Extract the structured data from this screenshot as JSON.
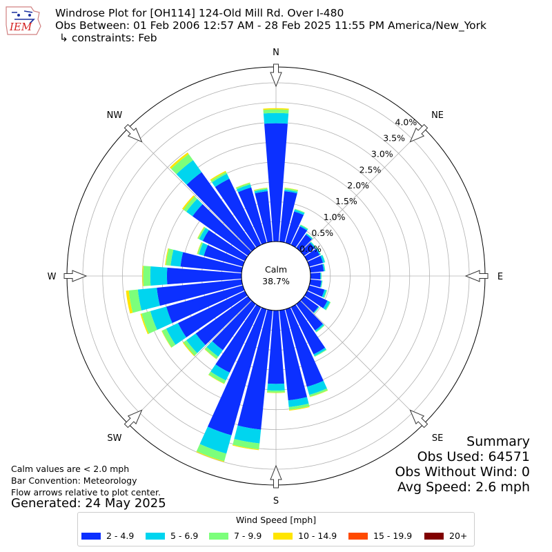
{
  "header": {
    "title_line1": "Windrose Plot for [OH114] 124-Old Mill Rd. Over I-480",
    "title_line2": "Obs Between: 01 Feb 2006 12:57 AM - 28 Feb 2025 11:55 PM America/New_York",
    "title_line3": "↳ constraints: Feb",
    "logo_text": "IEM"
  },
  "notes": {
    "calm_note": "Calm values are < 2.0 mph",
    "bar_convention": "Bar Convention: Meteorology",
    "flow_note": "Flow arrows relative to plot center.",
    "generated": "Generated: 24 May 2025"
  },
  "summary": {
    "title": "Summary",
    "obs_used": "Obs Used: 64571",
    "obs_without_wind": "Obs Without Wind: 0",
    "avg_speed": "Avg Speed: 2.6 mph"
  },
  "chart_data": {
    "type": "windrose",
    "calm_label": "Calm",
    "calm_value": "38.7%",
    "directions": [
      "N",
      "NE",
      "E",
      "SE",
      "S",
      "SW",
      "W",
      "NW"
    ],
    "radial_ticks": [
      "0.0%",
      "0.5%",
      "1.0%",
      "1.5%",
      "2.0%",
      "2.5%",
      "3.0%",
      "3.5%",
      "4.0%"
    ],
    "radial_max": 4.4,
    "sector_width_deg": 10,
    "legend": {
      "title": "Wind Speed [mph]",
      "bins": [
        {
          "label": "2 - 4.9",
          "color": "#0c30ff"
        },
        {
          "label": "5 - 6.9",
          "color": "#00d5ef"
        },
        {
          "label": "7 - 9.9",
          "color": "#7cff7b"
        },
        {
          "label": "10 - 14.9",
          "color": "#ffe500"
        },
        {
          "label": "15 - 19.9",
          "color": "#ff4a00"
        },
        {
          "label": "20+",
          "color": "#800000"
        }
      ]
    },
    "sectors": [
      {
        "dir": 0,
        "values": [
          2.98,
          0.26,
          0.09,
          0.03,
          0,
          0
        ]
      },
      {
        "dir": 10,
        "values": [
          1.28,
          0.04,
          0.04,
          0.01,
          0,
          0
        ]
      },
      {
        "dir": 20,
        "values": [
          0.82,
          0.05,
          0.02,
          0,
          0,
          0
        ]
      },
      {
        "dir": 30,
        "values": [
          0.52,
          0.03,
          0.02,
          0,
          0,
          0
        ]
      },
      {
        "dir": 40,
        "values": [
          0.42,
          0.03,
          0.01,
          0,
          0,
          0
        ]
      },
      {
        "dir": 50,
        "values": [
          0.33,
          0.03,
          0.01,
          0,
          0,
          0
        ]
      },
      {
        "dir": 60,
        "values": [
          0.35,
          0.03,
          0.01,
          0,
          0,
          0
        ]
      },
      {
        "dir": 70,
        "values": [
          0.36,
          0.05,
          0.01,
          0,
          0,
          0
        ]
      },
      {
        "dir": 80,
        "values": [
          0.34,
          0.03,
          0.01,
          0,
          0,
          0
        ]
      },
      {
        "dir": 90,
        "values": [
          0.25,
          0.02,
          0.01,
          0,
          0,
          0
        ]
      },
      {
        "dir": 100,
        "values": [
          0.28,
          0.02,
          0.01,
          0,
          0,
          0
        ]
      },
      {
        "dir": 110,
        "values": [
          0.4,
          0.05,
          0.02,
          0,
          0,
          0
        ]
      },
      {
        "dir": 120,
        "values": [
          0.57,
          0.07,
          0.02,
          0,
          0,
          0
        ]
      },
      {
        "dir": 130,
        "values": [
          0.45,
          0.02,
          0.01,
          0,
          0,
          0
        ]
      },
      {
        "dir": 140,
        "values": [
          0.82,
          0.04,
          0.02,
          0,
          0,
          0
        ]
      },
      {
        "dir": 150,
        "values": [
          1.32,
          0.05,
          0.02,
          0,
          0,
          0
        ]
      },
      {
        "dir": 160,
        "values": [
          2.03,
          0.21,
          0.05,
          0.01,
          0,
          0
        ]
      },
      {
        "dir": 170,
        "values": [
          2.28,
          0.17,
          0.07,
          0.02,
          0,
          0
        ]
      },
      {
        "dir": 180,
        "values": [
          1.85,
          0.17,
          0.05,
          0.01,
          0,
          0
        ]
      },
      {
        "dir": 190,
        "values": [
          3.02,
          0.35,
          0.15,
          0.02,
          0,
          0
        ]
      },
      {
        "dir": 200,
        "values": [
          3.3,
          0.48,
          0.2,
          0.02,
          0,
          0
        ]
      },
      {
        "dir": 210,
        "values": [
          1.83,
          0.22,
          0.09,
          0.01,
          0,
          0
        ]
      },
      {
        "dir": 220,
        "values": [
          1.43,
          0.2,
          0.07,
          0.01,
          0,
          0
        ]
      },
      {
        "dir": 230,
        "values": [
          1.62,
          0.29,
          0.09,
          0.02,
          0,
          0
        ]
      },
      {
        "dir": 240,
        "values": [
          1.87,
          0.33,
          0.12,
          0.01,
          0,
          0
        ]
      },
      {
        "dir": 250,
        "values": [
          2.0,
          0.42,
          0.23,
          0.03,
          0,
          0
        ]
      },
      {
        "dir": 260,
        "values": [
          2.15,
          0.48,
          0.23,
          0.07,
          0,
          0
        ]
      },
      {
        "dir": 270,
        "values": [
          1.88,
          0.42,
          0.18,
          0.02,
          0,
          0
        ]
      },
      {
        "dir": 280,
        "values": [
          1.55,
          0.25,
          0.12,
          0.02,
          0,
          0
        ]
      },
      {
        "dir": 290,
        "values": [
          1.02,
          0.13,
          0.04,
          0.01,
          0,
          0
        ]
      },
      {
        "dir": 300,
        "values": [
          1.18,
          0.1,
          0.04,
          0.01,
          0,
          0
        ]
      },
      {
        "dir": 310,
        "values": [
          1.72,
          0.19,
          0.09,
          0.04,
          0,
          0
        ]
      },
      {
        "dir": 320,
        "values": [
          2.35,
          0.37,
          0.19,
          0.05,
          0,
          0
        ]
      },
      {
        "dir": 330,
        "values": [
          1.85,
          0.14,
          0.05,
          0.03,
          0,
          0
        ]
      },
      {
        "dir": 340,
        "values": [
          1.45,
          0.08,
          0.04,
          0.01,
          0,
          0
        ]
      },
      {
        "dir": 350,
        "values": [
          1.28,
          0.05,
          0.03,
          0.01,
          0,
          0
        ]
      }
    ]
  }
}
